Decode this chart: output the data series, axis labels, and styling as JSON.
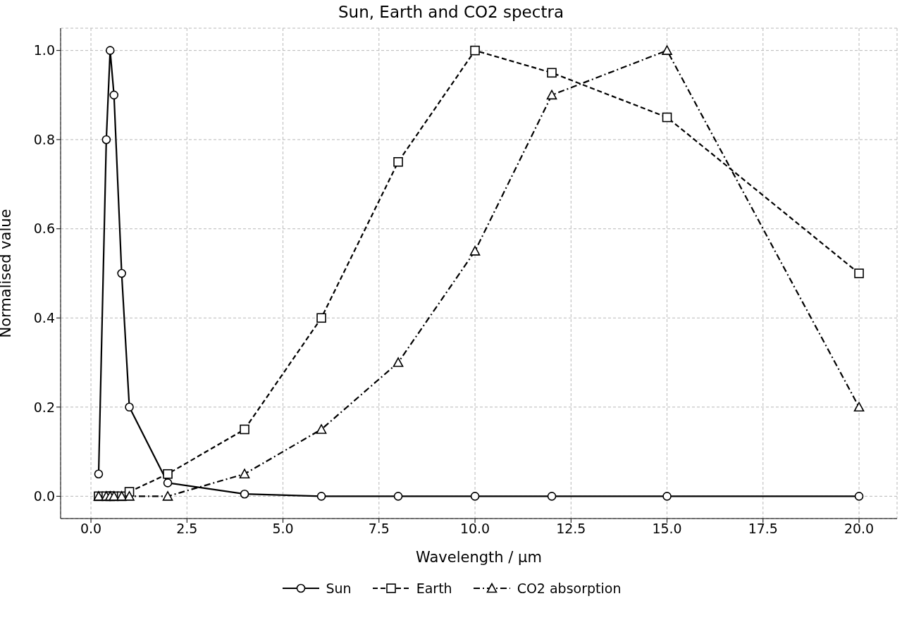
{
  "chart_data": {
    "type": "line",
    "title": "Sun, Earth and CO2 spectra",
    "xlabel": "Wavelength / μm",
    "ylabel": "Normalised value",
    "series": [
      {
        "name": "Sun",
        "color": "#000000",
        "marker": "circle",
        "line_style": "solid",
        "x": [
          0.2,
          0.4,
          0.5,
          0.6,
          0.8,
          1,
          2,
          4,
          6,
          8,
          10,
          12,
          15,
          20
        ],
        "values": [
          0.05,
          0.8,
          1.0,
          0.9,
          0.5,
          0.2,
          0.03,
          0.005,
          0,
          0,
          0,
          0,
          0,
          0
        ]
      },
      {
        "name": "Earth",
        "color": "#000000",
        "marker": "square",
        "line_style": "dashed",
        "x": [
          0.2,
          0.4,
          0.5,
          0.6,
          0.8,
          1,
          2,
          4,
          6,
          8,
          10,
          12,
          15,
          20
        ],
        "values": [
          0,
          0,
          0,
          0,
          0,
          0.01,
          0.05,
          0.15,
          0.4,
          0.75,
          1.0,
          0.95,
          0.85,
          0.5
        ]
      },
      {
        "name": "CO2 absorption",
        "color": "#000000",
        "marker": "triangle",
        "line_style": "dashdot",
        "x": [
          0.2,
          0.4,
          0.5,
          0.6,
          0.8,
          1,
          2,
          4,
          6,
          8,
          10,
          12,
          15,
          20
        ],
        "values": [
          0,
          0,
          0,
          0,
          0,
          0,
          0,
          0.05,
          0.15,
          0.3,
          0.55,
          0.9,
          1.0,
          0.2
        ]
      }
    ],
    "xlim": [
      -0.79,
      20.99
    ],
    "xticks": [
      {
        "value": 0,
        "label": "0.0"
      },
      {
        "value": 2.5,
        "label": "2.5"
      },
      {
        "value": 5,
        "label": "5.0"
      },
      {
        "value": 7.5,
        "label": "7.5"
      },
      {
        "value": 10,
        "label": "10.0"
      },
      {
        "value": 12.5,
        "label": "12.5"
      },
      {
        "value": 15,
        "label": "15.0"
      },
      {
        "value": 17.5,
        "label": "17.5"
      },
      {
        "value": 20,
        "label": "20.0"
      }
    ],
    "ylim": [
      -0.05,
      1.05
    ],
    "yticks": [
      {
        "value": 0,
        "label": "0.0"
      },
      {
        "value": 0.2,
        "label": "0.2"
      },
      {
        "value": 0.4,
        "label": "0.4"
      },
      {
        "value": 0.6,
        "label": "0.6"
      },
      {
        "value": 0.8,
        "label": "0.8"
      },
      {
        "value": 1,
        "label": "1.0"
      }
    ],
    "grid": true,
    "legend": "bottom"
  }
}
